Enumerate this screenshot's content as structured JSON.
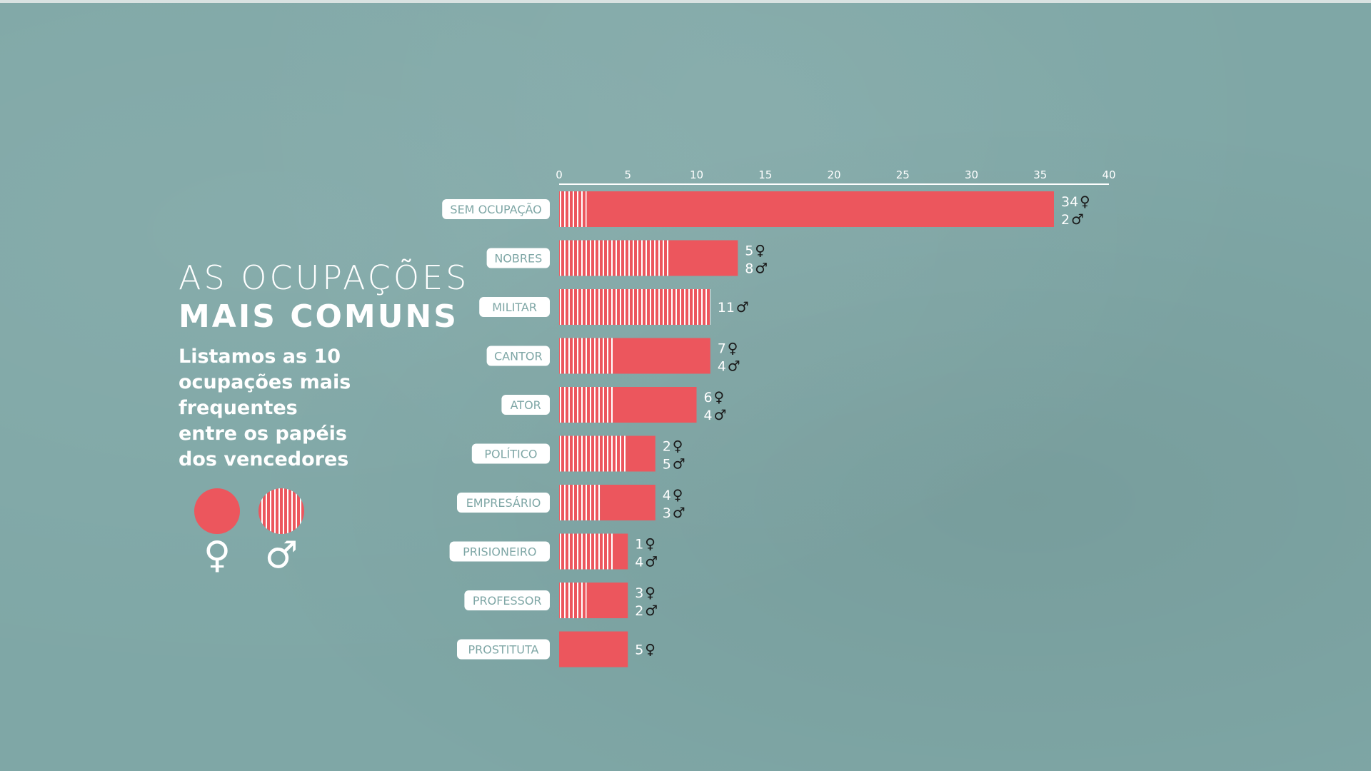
{
  "title_line1": "AS OCUPAÇÕES",
  "title_line2": "MAIS COMUNS",
  "subtitle_lines": [
    "Listamos as 10",
    "ocupações mais",
    "frequentes",
    "entre os papéis",
    "dos vencedores"
  ],
  "legend": {
    "female_symbol": "♀",
    "male_symbol": "♂"
  },
  "colors": {
    "background": "#7fa7a6",
    "bar": "#ec565d",
    "stripe": "#ffffff"
  },
  "chart_data": {
    "type": "bar",
    "orientation": "horizontal",
    "stacked": true,
    "xlim": [
      0,
      40
    ],
    "ticks": [
      0,
      5,
      10,
      15,
      20,
      25,
      30,
      35,
      40
    ],
    "categories": [
      "SEM OCUPAÇÃO",
      "NOBRES",
      "MILITAR",
      "CANTOR",
      "ATOR",
      "POLÍTICO",
      "EMPRESÁRIO",
      "PRISIONEIRO",
      "PROFESSOR",
      "PROSTITUTA"
    ],
    "series": [
      {
        "name": "♂",
        "pattern": "striped",
        "values": [
          2,
          8,
          11,
          4,
          4,
          5,
          3,
          4,
          2,
          0
        ]
      },
      {
        "name": "♀",
        "pattern": "solid",
        "values": [
          34,
          5,
          0,
          7,
          6,
          2,
          4,
          1,
          3,
          5
        ]
      }
    ],
    "data_labels": [
      [
        {
          "value": "34",
          "symbol": "♀"
        },
        {
          "value": "2",
          "symbol": "♂"
        }
      ],
      [
        {
          "value": "5",
          "symbol": "♀"
        },
        {
          "value": "8",
          "symbol": "♂"
        }
      ],
      [
        {
          "value": "11",
          "symbol": "♂"
        }
      ],
      [
        {
          "value": "7",
          "symbol": "♀"
        },
        {
          "value": "4",
          "symbol": "♂"
        }
      ],
      [
        {
          "value": "6",
          "symbol": "♀"
        },
        {
          "value": "4",
          "symbol": "♂"
        }
      ],
      [
        {
          "value": "2",
          "symbol": "♀"
        },
        {
          "value": "5",
          "symbol": "♂"
        }
      ],
      [
        {
          "value": "4",
          "symbol": "♀"
        },
        {
          "value": "3",
          "symbol": "♂"
        }
      ],
      [
        {
          "value": "1",
          "symbol": "♀"
        },
        {
          "value": "4",
          "symbol": "♂"
        }
      ],
      [
        {
          "value": "3",
          "symbol": "♀"
        },
        {
          "value": "2",
          "symbol": "♂"
        }
      ],
      [
        {
          "value": "5",
          "symbol": "♀"
        }
      ]
    ]
  }
}
